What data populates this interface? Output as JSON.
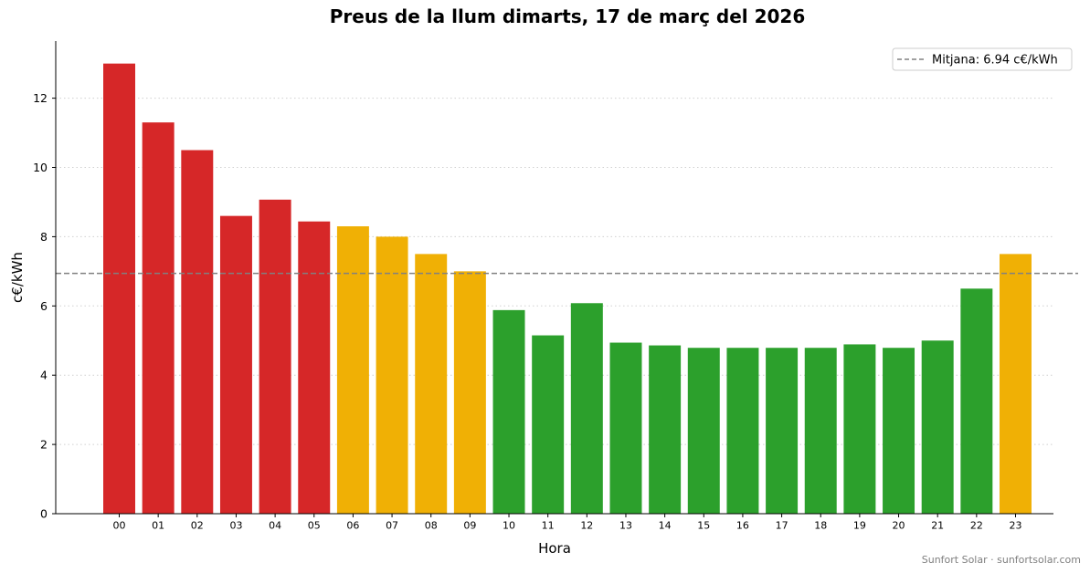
{
  "chart_data": {
    "type": "bar",
    "title": "Preus de la llum dimarts, 17 de març del 2026",
    "xlabel": "Hora",
    "ylabel": "c€/kWh",
    "ylim": [
      0,
      13.65
    ],
    "yticks": [
      0,
      2,
      4,
      6,
      8,
      10,
      12
    ],
    "grid": "horizontal dotted",
    "categories": [
      "00",
      "01",
      "02",
      "03",
      "04",
      "05",
      "06",
      "07",
      "08",
      "09",
      "10",
      "11",
      "12",
      "13",
      "14",
      "15",
      "16",
      "17",
      "18",
      "19",
      "20",
      "21",
      "22",
      "23"
    ],
    "values": [
      13.0,
      11.3,
      10.5,
      8.6,
      9.07,
      8.44,
      8.3,
      8.0,
      7.5,
      7.0,
      5.88,
      5.15,
      6.08,
      4.94,
      4.86,
      4.79,
      4.79,
      4.79,
      4.79,
      4.89,
      4.79,
      5.0,
      6.5,
      7.5
    ],
    "bar_colors": [
      "#d62728",
      "#d62728",
      "#d62728",
      "#d62728",
      "#d62728",
      "#d62728",
      "#f0b005",
      "#f0b005",
      "#f0b005",
      "#f0b005",
      "#2ca02c",
      "#2ca02c",
      "#2ca02c",
      "#2ca02c",
      "#2ca02c",
      "#2ca02c",
      "#2ca02c",
      "#2ca02c",
      "#2ca02c",
      "#2ca02c",
      "#2ca02c",
      "#2ca02c",
      "#2ca02c",
      "#f0b005"
    ],
    "reference_line": {
      "value": 6.94,
      "style": "dashed",
      "color": "#808080",
      "label": "Mitjana: 6.94 c€/kWh"
    },
    "legend_position": "top-right"
  },
  "credit": "Sunfort Solar · sunfortsolar.com"
}
